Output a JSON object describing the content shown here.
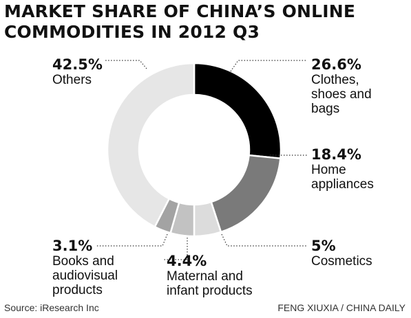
{
  "title_lines": [
    "MARKET SHARE OF CHINA’S ONLINE",
    "COMMODITIES IN 2012 Q3"
  ],
  "source": "Source: iResearch Inc",
  "credit": "FENG XIUXIA / CHINA DAILY",
  "chart_data": {
    "type": "pie",
    "style": "donut",
    "title": "MARKET SHARE OF CHINA’S ONLINE COMMODITIES IN 2012 Q3",
    "unit": "%",
    "slices": [
      {
        "label": "Clothes, shoes and bags",
        "value": 26.6,
        "value_label": "26.6%",
        "label_lines": [
          "Clothes,",
          "shoes and",
          "bags"
        ],
        "color": "#000000"
      },
      {
        "label": "Home appliances",
        "value": 18.4,
        "value_label": "18.4%",
        "label_lines": [
          "Home",
          "appliances"
        ],
        "color": "#7a7a7a"
      },
      {
        "label": "Cosmetics",
        "value": 5,
        "value_label": "5%",
        "label_lines": [
          "Cosmetics"
        ],
        "color": "#dcdcdc"
      },
      {
        "label": "Maternal and infant products",
        "value": 4.4,
        "value_label": "4.4%",
        "label_lines": [
          "Maternal and",
          "infant products"
        ],
        "color": "#c2c2c2"
      },
      {
        "label": "Books and audiovisual products",
        "value": 3.1,
        "value_label": "3.1%",
        "label_lines": [
          "Books and",
          "audiovisual",
          "products"
        ],
        "color": "#a3a3a3"
      },
      {
        "label": "Others",
        "value": 42.5,
        "value_label": "42.5%",
        "label_lines": [
          "Others"
        ],
        "color": "#e6e6e6"
      }
    ]
  }
}
